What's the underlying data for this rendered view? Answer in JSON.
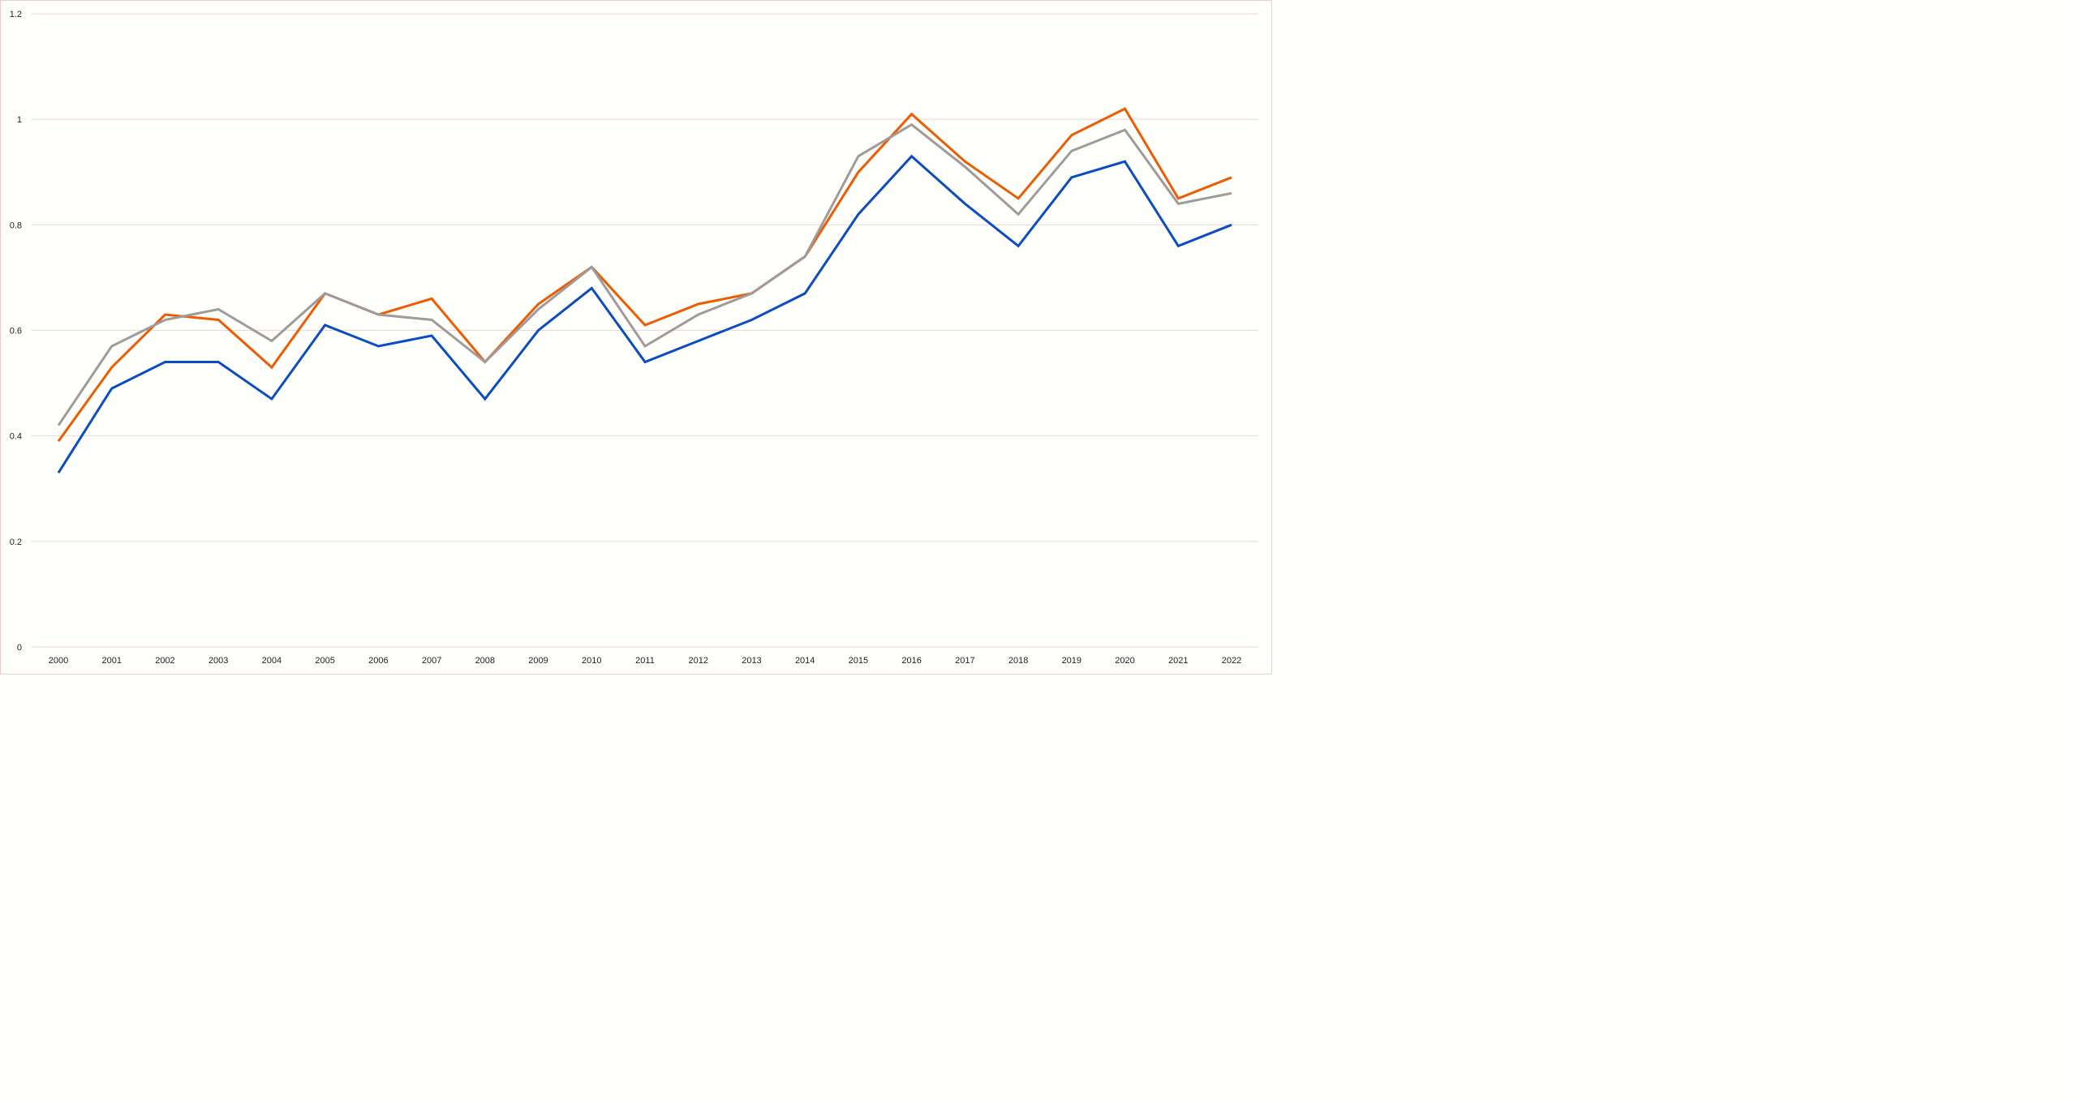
{
  "chart_data": {
    "type": "line",
    "title": "",
    "xlabel": "",
    "ylabel": "",
    "x": [
      "2000",
      "2001",
      "2002",
      "2003",
      "2004",
      "2005",
      "2006",
      "2007",
      "2008",
      "2009",
      "2010",
      "2011",
      "2012",
      "2013",
      "2014",
      "2015",
      "2016",
      "2017",
      "2018",
      "2019",
      "2020",
      "2021",
      "2022"
    ],
    "ylim": [
      0,
      1.2
    ],
    "yticks": [
      "0",
      "0.2",
      "0.4",
      "0.6",
      "0.8",
      "1",
      "1.2"
    ],
    "grid": true,
    "legend": "none",
    "series": [
      {
        "color": "#0b4cc2",
        "values": [
          0.33,
          0.49,
          0.54,
          0.54,
          0.47,
          0.61,
          0.57,
          0.59,
          0.47,
          0.6,
          0.68,
          0.54,
          0.58,
          0.62,
          0.67,
          0.82,
          0.93,
          0.84,
          0.76,
          0.89,
          0.92,
          0.76,
          0.8
        ]
      },
      {
        "color": "#f05a00",
        "values": [
          0.39,
          0.53,
          0.63,
          0.62,
          0.53,
          0.67,
          0.63,
          0.66,
          0.54,
          0.65,
          0.72,
          0.61,
          0.65,
          0.67,
          0.74,
          0.9,
          1.01,
          0.92,
          0.85,
          0.97,
          1.02,
          0.85,
          0.89
        ]
      },
      {
        "color": "#a09a9a",
        "values": [
          0.42,
          0.57,
          0.62,
          0.64,
          0.58,
          0.67,
          0.63,
          0.62,
          0.54,
          0.64,
          0.72,
          0.57,
          0.63,
          0.67,
          0.74,
          0.93,
          0.99,
          0.91,
          0.82,
          0.94,
          0.98,
          0.84,
          0.86
        ]
      }
    ]
  }
}
